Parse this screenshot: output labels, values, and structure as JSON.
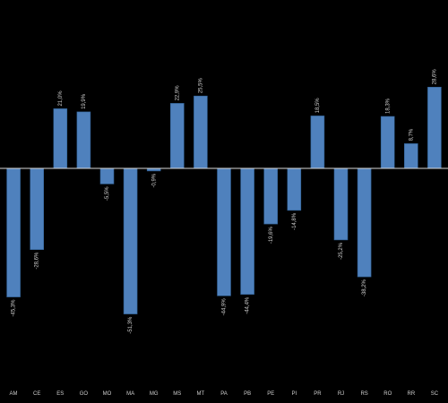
{
  "chart_data": {
    "type": "bar",
    "categories": [
      "AM",
      "CE",
      "ES",
      "GO",
      "MO",
      "MA",
      "MG",
      "MS",
      "MT",
      "PA",
      "PB",
      "PE",
      "PI",
      "PR",
      "RJ",
      "RS",
      "RO",
      "RR",
      "SC"
    ],
    "values": [
      -45.3,
      -28.6,
      21.0,
      19.9,
      -5.5,
      -51.3,
      -0.9,
      22.9,
      25.5,
      -44.9,
      -44.4,
      -19.6,
      -14.8,
      18.5,
      -25.2,
      -38.2,
      18.3,
      8.7,
      28.6
    ],
    "data_labels": [
      "-45,3%",
      "-28,6%",
      "21,0%",
      "19,9%",
      "-5,5%",
      "-51,3%",
      "-0,9%",
      "22,9%",
      "25,5%",
      "-44,9%",
      "-44,4%",
      "-19,6%",
      "-14,8%",
      "18,5%",
      "-25,2%",
      "-38,2%",
      "18,3%",
      "8,7%",
      "28,6%"
    ],
    "ylim": [
      -60,
      60
    ],
    "grid": false,
    "colors": {
      "bar": "#4f81bd",
      "bar_edge": "#2f5f93",
      "axis": "#d9d9d9",
      "background": "#000000",
      "text": "#cfcfcf"
    }
  }
}
